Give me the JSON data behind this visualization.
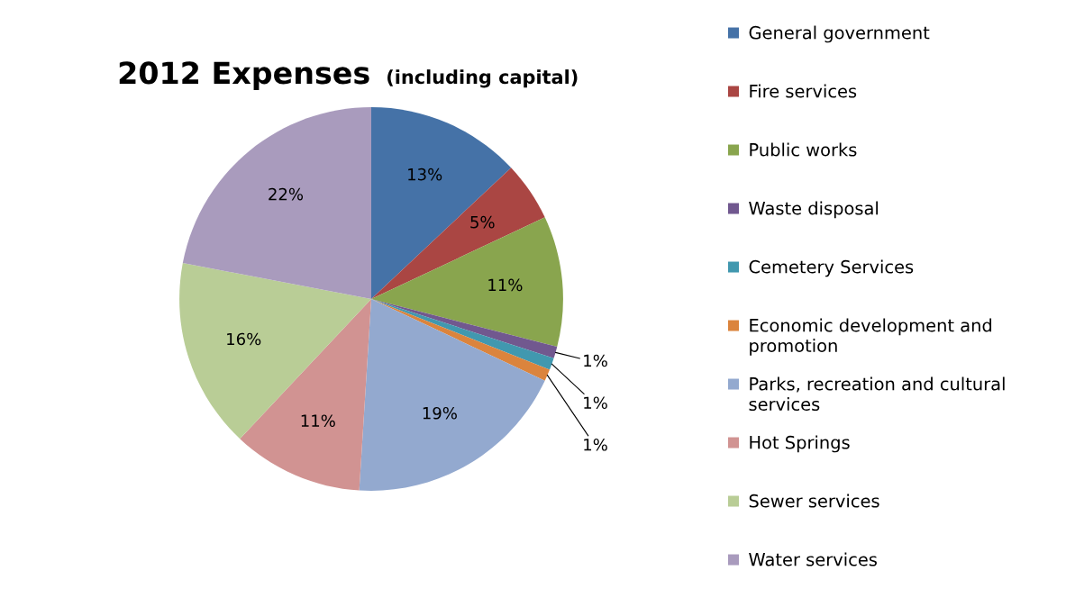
{
  "chart_data": {
    "type": "pie",
    "title": "2012 Expenses",
    "subtitle": "(including capital)",
    "categories": [
      "General government",
      "Fire services",
      "Public works",
      "Waste disposal",
      "Cemetery Services",
      "Economic development and promotion",
      "Parks, recreation and cultural services",
      "Hot Springs",
      "Sewer services",
      "Water services"
    ],
    "values": [
      13,
      5,
      11,
      1,
      1,
      1,
      19,
      11,
      16,
      22
    ],
    "colors": [
      "#4572a7",
      "#aa4643",
      "#89a54e",
      "#71588f",
      "#4198af",
      "#db843d",
      "#93a9cf",
      "#d19392",
      "#b9cd96",
      "#a99bbd"
    ],
    "value_labels": [
      "13%",
      "5%",
      "11%",
      "1%",
      "1%",
      "1%",
      "19%",
      "11%",
      "16%",
      "22%"
    ],
    "legend": "right"
  }
}
